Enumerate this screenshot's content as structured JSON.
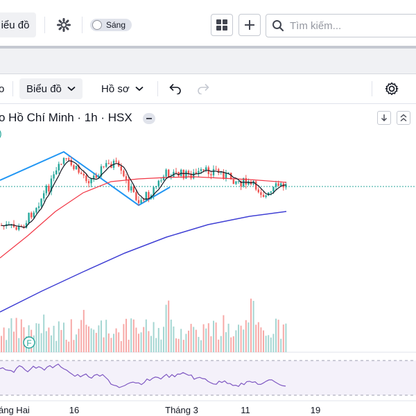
{
  "topbar": {
    "chart_tab_label": "iểu đồ",
    "theme_toggle_label": "Sáng",
    "search_placeholder": "Tìm kiếm..."
  },
  "toolbar": {
    "partial_left_label": "o",
    "chart_menu_label": "Biểu đồ",
    "profile_menu_label": "Hồ sơ"
  },
  "legend": {
    "symbol_title": "o Hồ Chí Minh · 1h · HSX",
    "indicator_char": ")"
  },
  "chart": {
    "event_marker_label": "F",
    "x_axis_labels": [
      "áng Hai",
      "16",
      "Tháng 3",
      "11",
      "19"
    ],
    "colors": {
      "up": "#26a69a",
      "down": "#ef5350",
      "ma_short": "#131722",
      "ma_mid": "#f23645",
      "ma_long": "#3f3fd4",
      "zigzag": "#2196f3",
      "rsi": "#7e57c2"
    }
  }
}
